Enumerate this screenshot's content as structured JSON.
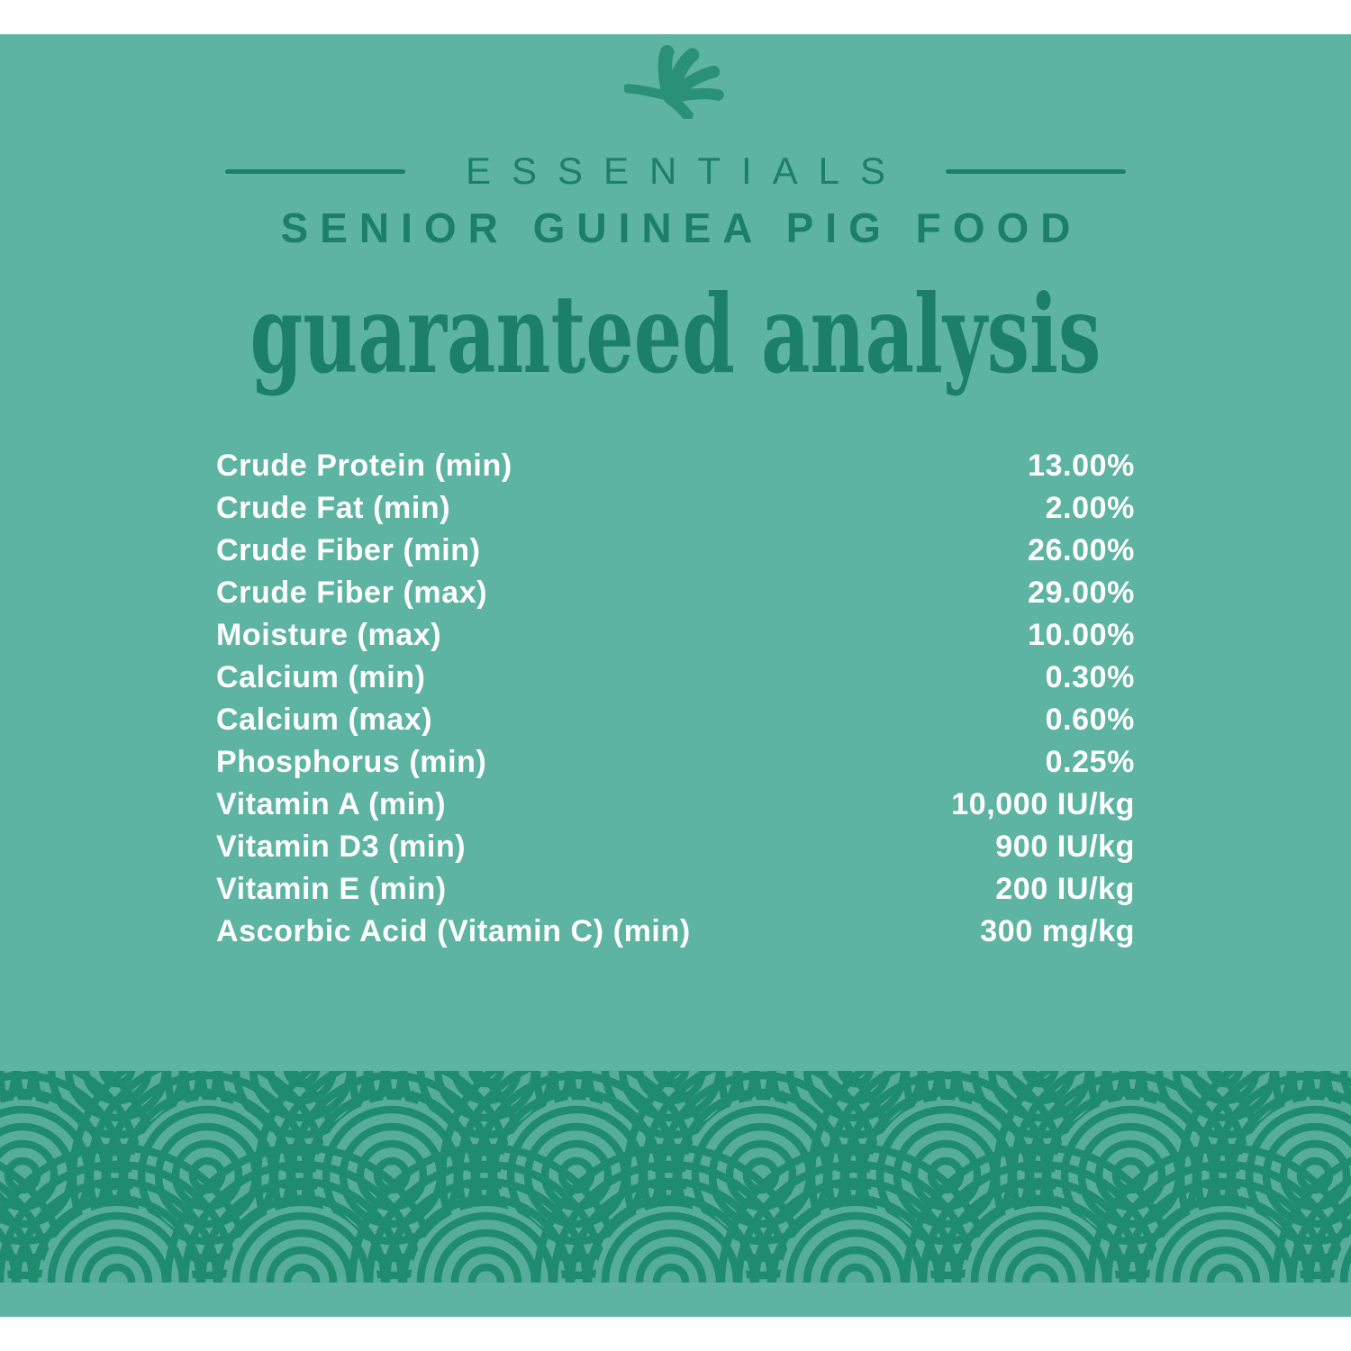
{
  "header": {
    "brand_line": "ESSENTIALS",
    "product_line": "SENIOR GUINEA PIG FOOD",
    "title": "guaranteed analysis"
  },
  "table": {
    "rows": [
      {
        "label": "Crude Protein (min)",
        "value": "13.00%"
      },
      {
        "label": "Crude Fat (min)",
        "value": "2.00%"
      },
      {
        "label": "Crude Fiber (min)",
        "value": "26.00%"
      },
      {
        "label": "Crude Fiber (max)",
        "value": "29.00%"
      },
      {
        "label": "Moisture (max)",
        "value": "10.00%"
      },
      {
        "label": "Calcium (min)",
        "value": "0.30%"
      },
      {
        "label": "Calcium (max)",
        "value": "0.60%"
      },
      {
        "label": "Phosphorus (min)",
        "value": "0.25%"
      },
      {
        "label": "Vitamin A (min)",
        "value": "10,000 IU/kg"
      },
      {
        "label": "Vitamin D3 (min)",
        "value": "900 IU/kg"
      },
      {
        "label": "Vitamin E (min)",
        "value": "200 IU/kg"
      },
      {
        "label": "Ascorbic Acid (Vitamin C) (min)",
        "value": "300 mg/kg"
      }
    ]
  },
  "icons": {
    "leaf": "leaf-sprig-icon"
  },
  "colors": {
    "card_bg": "#5db4a2",
    "band_bg": "#56ad9b",
    "accent_dark": "#1c7f69",
    "leaf_green": "#2b9078",
    "pattern_stroke": "#1f8b70",
    "text_white": "#ffffff"
  }
}
